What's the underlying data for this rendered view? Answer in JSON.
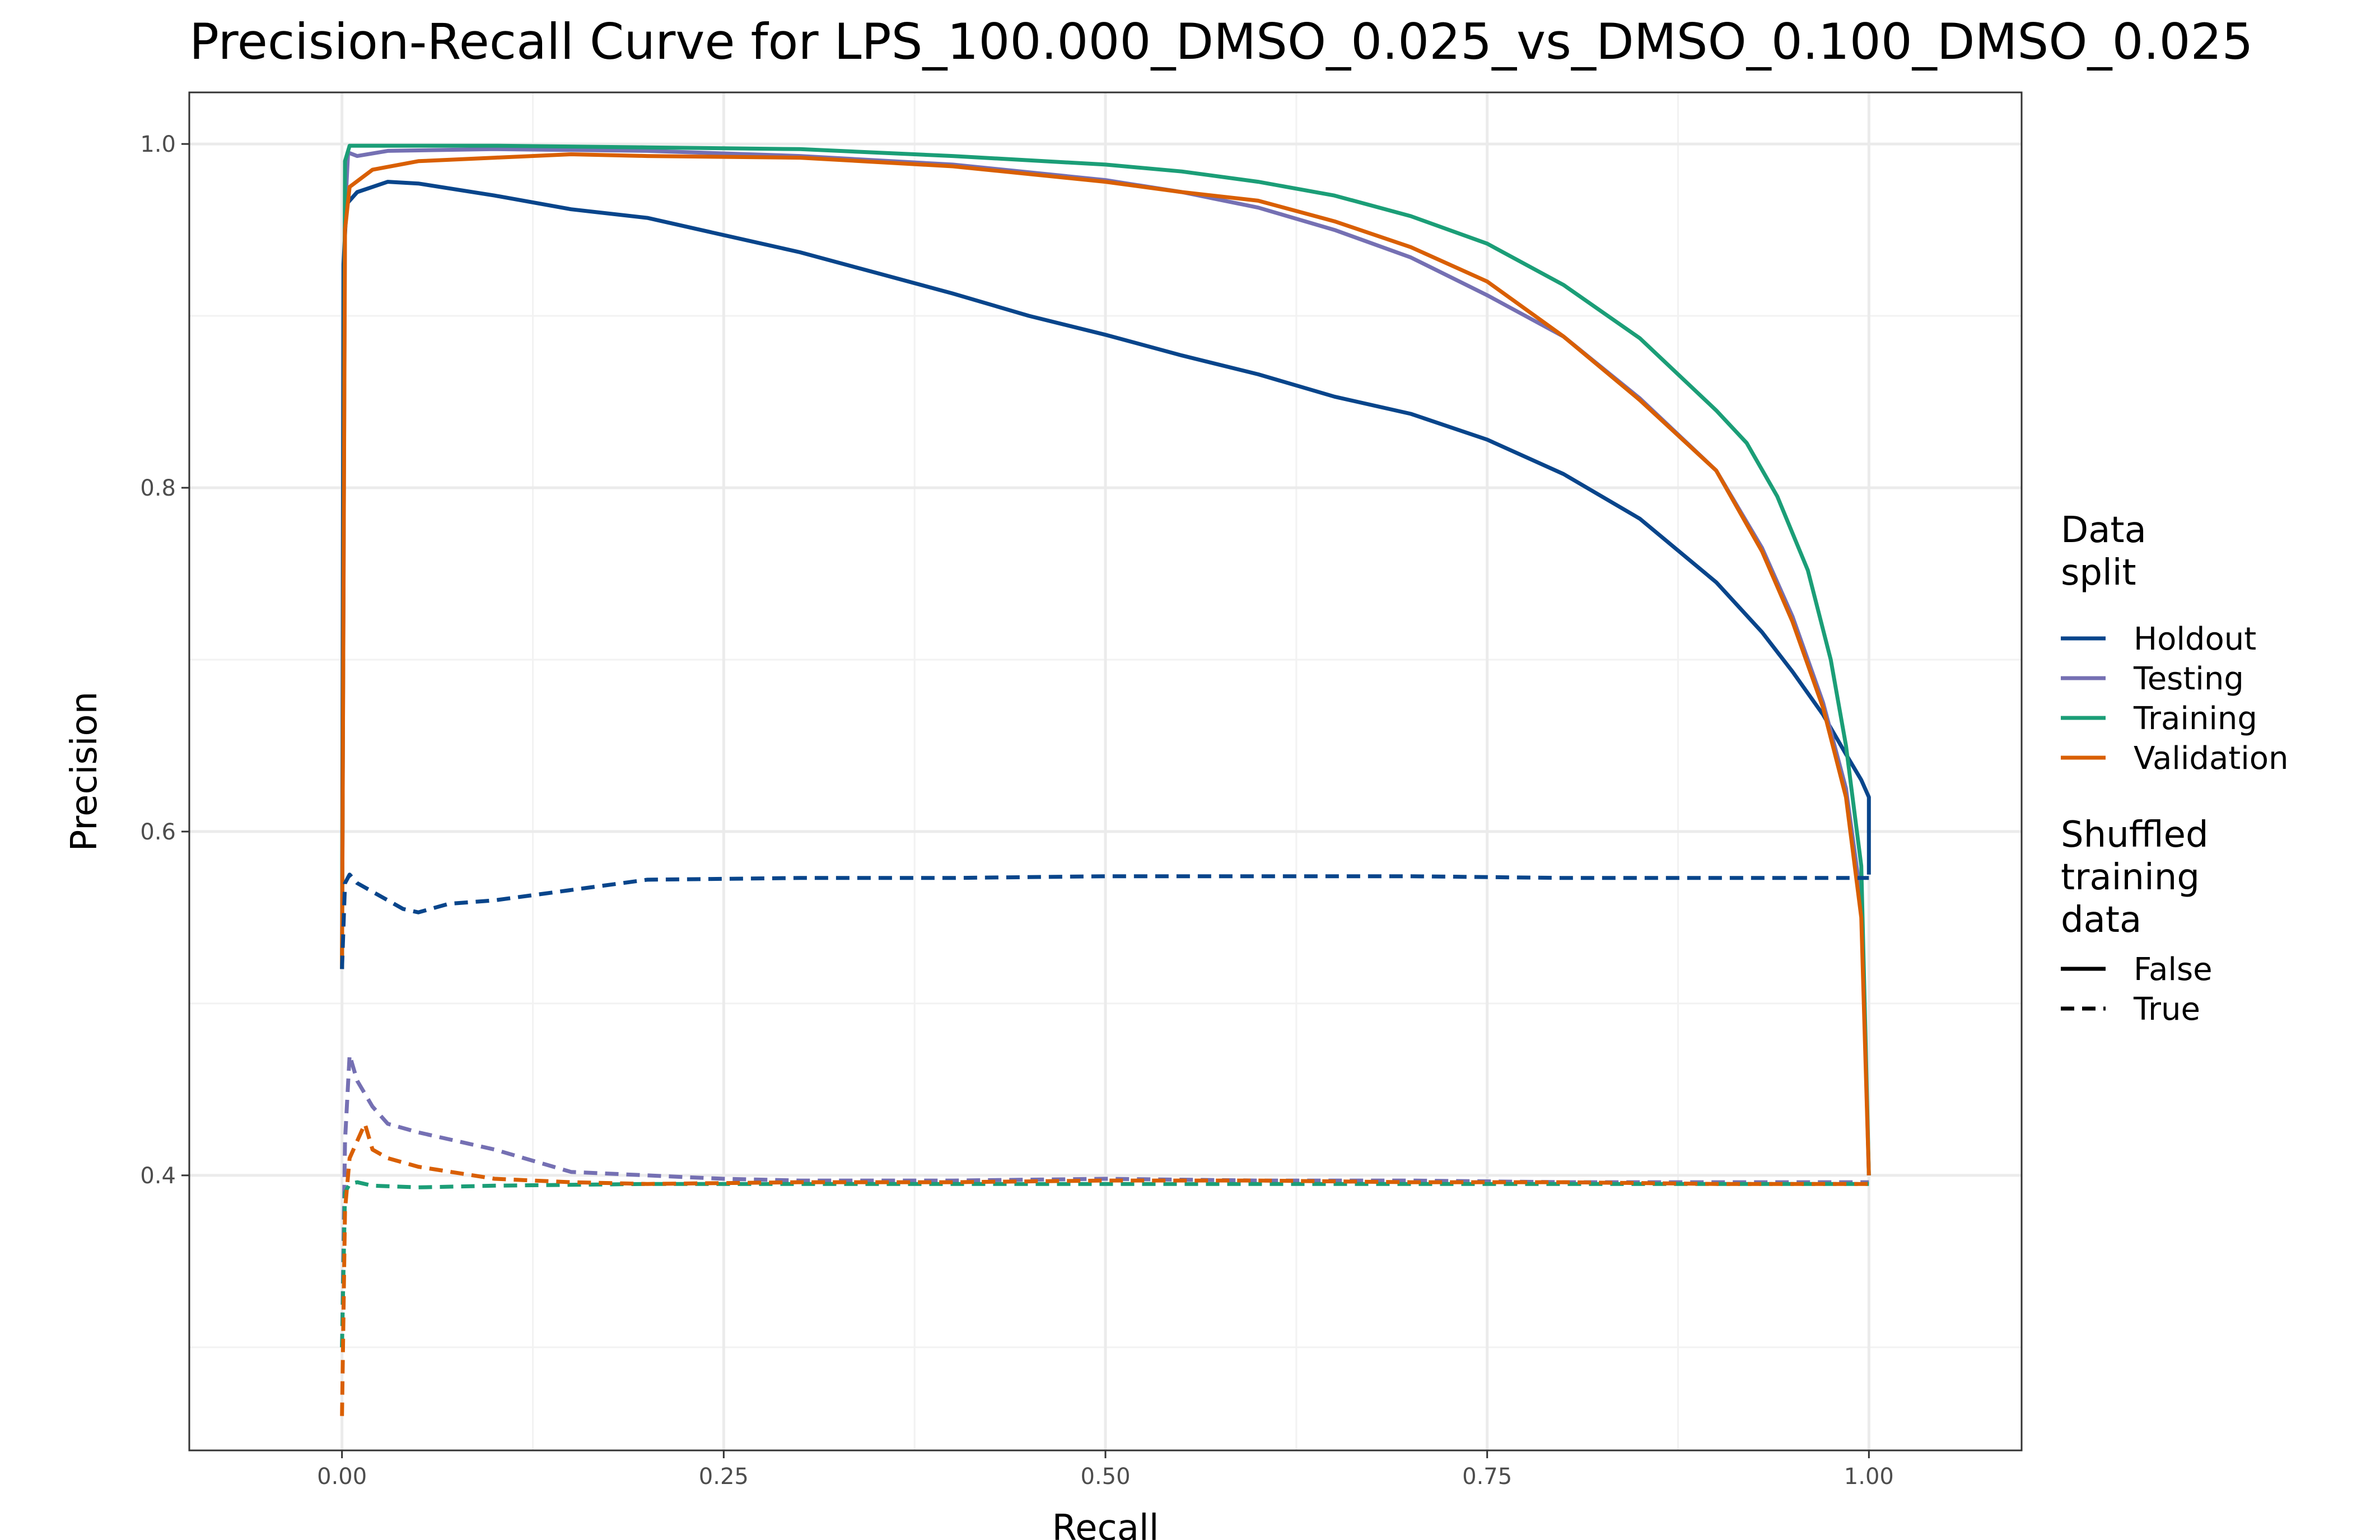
{
  "chart_data": {
    "type": "line",
    "title": "Precision-Recall Curve for LPS_100.000_DMSO_0.025_vs_DMSO_0.100_DMSO_0.025",
    "xlabel": "Recall",
    "ylabel": "Precision",
    "xlim": [
      -0.1,
      1.1
    ],
    "ylim": [
      0.24,
      1.03
    ],
    "xticks": [
      0.0,
      0.25,
      0.5,
      0.75,
      1.0
    ],
    "xtick_labels": [
      "0.00",
      "0.25",
      "0.50",
      "0.75",
      "1.00"
    ],
    "yticks": [
      0.4,
      0.6,
      0.8,
      1.0
    ],
    "ytick_labels": [
      "0.4",
      "0.6",
      "0.8",
      "1.0"
    ],
    "grid": true,
    "legend_position": "right",
    "legend_color_title": [
      "Data",
      "split"
    ],
    "legend_linetype_title": [
      "Shuffled",
      "training",
      "data"
    ],
    "linetype_entries": [
      {
        "label": "False",
        "dash": "solid"
      },
      {
        "label": "True",
        "dash": "dashed"
      }
    ],
    "series": [
      {
        "name": "Holdout",
        "color": "#08458b",
        "shuffled": "False",
        "points": [
          [
            0,
            0.52
          ],
          [
            0.001,
            0.93
          ],
          [
            0.003,
            0.965
          ],
          [
            0.01,
            0.972
          ],
          [
            0.02,
            0.975
          ],
          [
            0.03,
            0.978
          ],
          [
            0.05,
            0.977
          ],
          [
            0.1,
            0.97
          ],
          [
            0.15,
            0.962
          ],
          [
            0.2,
            0.957
          ],
          [
            0.25,
            0.947
          ],
          [
            0.3,
            0.937
          ],
          [
            0.35,
            0.925
          ],
          [
            0.4,
            0.913
          ],
          [
            0.45,
            0.9
          ],
          [
            0.5,
            0.889
          ],
          [
            0.55,
            0.877
          ],
          [
            0.6,
            0.866
          ],
          [
            0.65,
            0.853
          ],
          [
            0.7,
            0.843
          ],
          [
            0.75,
            0.828
          ],
          [
            0.8,
            0.808
          ],
          [
            0.85,
            0.782
          ],
          [
            0.9,
            0.745
          ],
          [
            0.93,
            0.716
          ],
          [
            0.95,
            0.693
          ],
          [
            0.97,
            0.668
          ],
          [
            0.985,
            0.645
          ],
          [
            0.995,
            0.63
          ],
          [
            1.0,
            0.62
          ],
          [
            1.0,
            0.575
          ]
        ]
      },
      {
        "name": "Testing",
        "color": "#7570b3",
        "shuffled": "False",
        "points": [
          [
            0,
            0.52
          ],
          [
            0.002,
            0.96
          ],
          [
            0.004,
            0.995
          ],
          [
            0.01,
            0.993
          ],
          [
            0.03,
            0.996
          ],
          [
            0.1,
            0.997
          ],
          [
            0.2,
            0.996
          ],
          [
            0.3,
            0.993
          ],
          [
            0.4,
            0.988
          ],
          [
            0.5,
            0.979
          ],
          [
            0.55,
            0.972
          ],
          [
            0.6,
            0.963
          ],
          [
            0.65,
            0.95
          ],
          [
            0.7,
            0.934
          ],
          [
            0.75,
            0.912
          ],
          [
            0.8,
            0.888
          ],
          [
            0.85,
            0.852
          ],
          [
            0.9,
            0.81
          ],
          [
            0.93,
            0.765
          ],
          [
            0.95,
            0.725
          ],
          [
            0.97,
            0.675
          ],
          [
            0.985,
            0.625
          ],
          [
            0.995,
            0.56
          ],
          [
            1.0,
            0.4
          ]
        ]
      },
      {
        "name": "Training",
        "color": "#1b9e77",
        "shuffled": "False",
        "points": [
          [
            0,
            0.52
          ],
          [
            0.002,
            0.99
          ],
          [
            0.005,
            0.999
          ],
          [
            0.05,
            0.999
          ],
          [
            0.1,
            0.999
          ],
          [
            0.2,
            0.998
          ],
          [
            0.3,
            0.997
          ],
          [
            0.4,
            0.993
          ],
          [
            0.5,
            0.988
          ],
          [
            0.55,
            0.984
          ],
          [
            0.6,
            0.978
          ],
          [
            0.65,
            0.97
          ],
          [
            0.7,
            0.958
          ],
          [
            0.75,
            0.942
          ],
          [
            0.8,
            0.918
          ],
          [
            0.85,
            0.887
          ],
          [
            0.9,
            0.845
          ],
          [
            0.92,
            0.826
          ],
          [
            0.94,
            0.795
          ],
          [
            0.96,
            0.752
          ],
          [
            0.975,
            0.7
          ],
          [
            0.985,
            0.65
          ],
          [
            0.995,
            0.58
          ],
          [
            1.0,
            0.4
          ]
        ]
      },
      {
        "name": "Validation",
        "color": "#d95f02",
        "shuffled": "False",
        "points": [
          [
            0,
            0.52
          ],
          [
            0.002,
            0.95
          ],
          [
            0.005,
            0.975
          ],
          [
            0.02,
            0.985
          ],
          [
            0.05,
            0.99
          ],
          [
            0.1,
            0.992
          ],
          [
            0.15,
            0.994
          ],
          [
            0.2,
            0.993
          ],
          [
            0.3,
            0.992
          ],
          [
            0.4,
            0.987
          ],
          [
            0.5,
            0.978
          ],
          [
            0.55,
            0.972
          ],
          [
            0.6,
            0.967
          ],
          [
            0.65,
            0.955
          ],
          [
            0.7,
            0.94
          ],
          [
            0.75,
            0.92
          ],
          [
            0.8,
            0.888
          ],
          [
            0.85,
            0.851
          ],
          [
            0.9,
            0.81
          ],
          [
            0.93,
            0.763
          ],
          [
            0.95,
            0.722
          ],
          [
            0.97,
            0.672
          ],
          [
            0.985,
            0.62
          ],
          [
            0.995,
            0.55
          ],
          [
            1.0,
            0.4
          ]
        ]
      },
      {
        "name": "Holdout",
        "color": "#08458b",
        "shuffled": "True",
        "points": [
          [
            0,
            0.52
          ],
          [
            0.002,
            0.57
          ],
          [
            0.005,
            0.575
          ],
          [
            0.01,
            0.57
          ],
          [
            0.02,
            0.565
          ],
          [
            0.03,
            0.56
          ],
          [
            0.04,
            0.555
          ],
          [
            0.05,
            0.553
          ],
          [
            0.07,
            0.558
          ],
          [
            0.1,
            0.56
          ],
          [
            0.15,
            0.566
          ],
          [
            0.2,
            0.572
          ],
          [
            0.3,
            0.573
          ],
          [
            0.4,
            0.573
          ],
          [
            0.5,
            0.574
          ],
          [
            0.6,
            0.574
          ],
          [
            0.7,
            0.574
          ],
          [
            0.8,
            0.573
          ],
          [
            0.9,
            0.573
          ],
          [
            1.0,
            0.573
          ]
        ]
      },
      {
        "name": "Testing",
        "color": "#7570b3",
        "shuffled": "True",
        "points": [
          [
            0,
            0.3
          ],
          [
            0.002,
            0.42
          ],
          [
            0.005,
            0.47
          ],
          [
            0.01,
            0.455
          ],
          [
            0.02,
            0.44
          ],
          [
            0.03,
            0.43
          ],
          [
            0.05,
            0.425
          ],
          [
            0.1,
            0.415
          ],
          [
            0.15,
            0.402
          ],
          [
            0.2,
            0.4
          ],
          [
            0.25,
            0.398
          ],
          [
            0.3,
            0.397
          ],
          [
            0.4,
            0.397
          ],
          [
            0.5,
            0.398
          ],
          [
            0.6,
            0.397
          ],
          [
            0.7,
            0.397
          ],
          [
            0.8,
            0.396
          ],
          [
            0.9,
            0.396
          ],
          [
            1.0,
            0.396
          ]
        ]
      },
      {
        "name": "Training",
        "color": "#1b9e77",
        "shuffled": "True",
        "points": [
          [
            0,
            0.3
          ],
          [
            0.002,
            0.39
          ],
          [
            0.005,
            0.395
          ],
          [
            0.01,
            0.396
          ],
          [
            0.02,
            0.394
          ],
          [
            0.05,
            0.393
          ],
          [
            0.1,
            0.394
          ],
          [
            0.2,
            0.395
          ],
          [
            0.3,
            0.395
          ],
          [
            0.4,
            0.395
          ],
          [
            0.5,
            0.395
          ],
          [
            0.6,
            0.395
          ],
          [
            0.7,
            0.395
          ],
          [
            0.8,
            0.395
          ],
          [
            0.9,
            0.395
          ],
          [
            1.0,
            0.395
          ]
        ]
      },
      {
        "name": "Validation",
        "color": "#d95f02",
        "shuffled": "True",
        "points": [
          [
            0,
            0.26
          ],
          [
            0.002,
            0.38
          ],
          [
            0.005,
            0.41
          ],
          [
            0.01,
            0.42
          ],
          [
            0.015,
            0.43
          ],
          [
            0.02,
            0.415
          ],
          [
            0.03,
            0.41
          ],
          [
            0.05,
            0.405
          ],
          [
            0.1,
            0.398
          ],
          [
            0.15,
            0.396
          ],
          [
            0.2,
            0.395
          ],
          [
            0.3,
            0.396
          ],
          [
            0.4,
            0.396
          ],
          [
            0.5,
            0.397
          ],
          [
            0.6,
            0.397
          ],
          [
            0.7,
            0.396
          ],
          [
            0.8,
            0.396
          ],
          [
            0.9,
            0.395
          ],
          [
            1.0,
            0.395
          ]
        ]
      }
    ]
  }
}
